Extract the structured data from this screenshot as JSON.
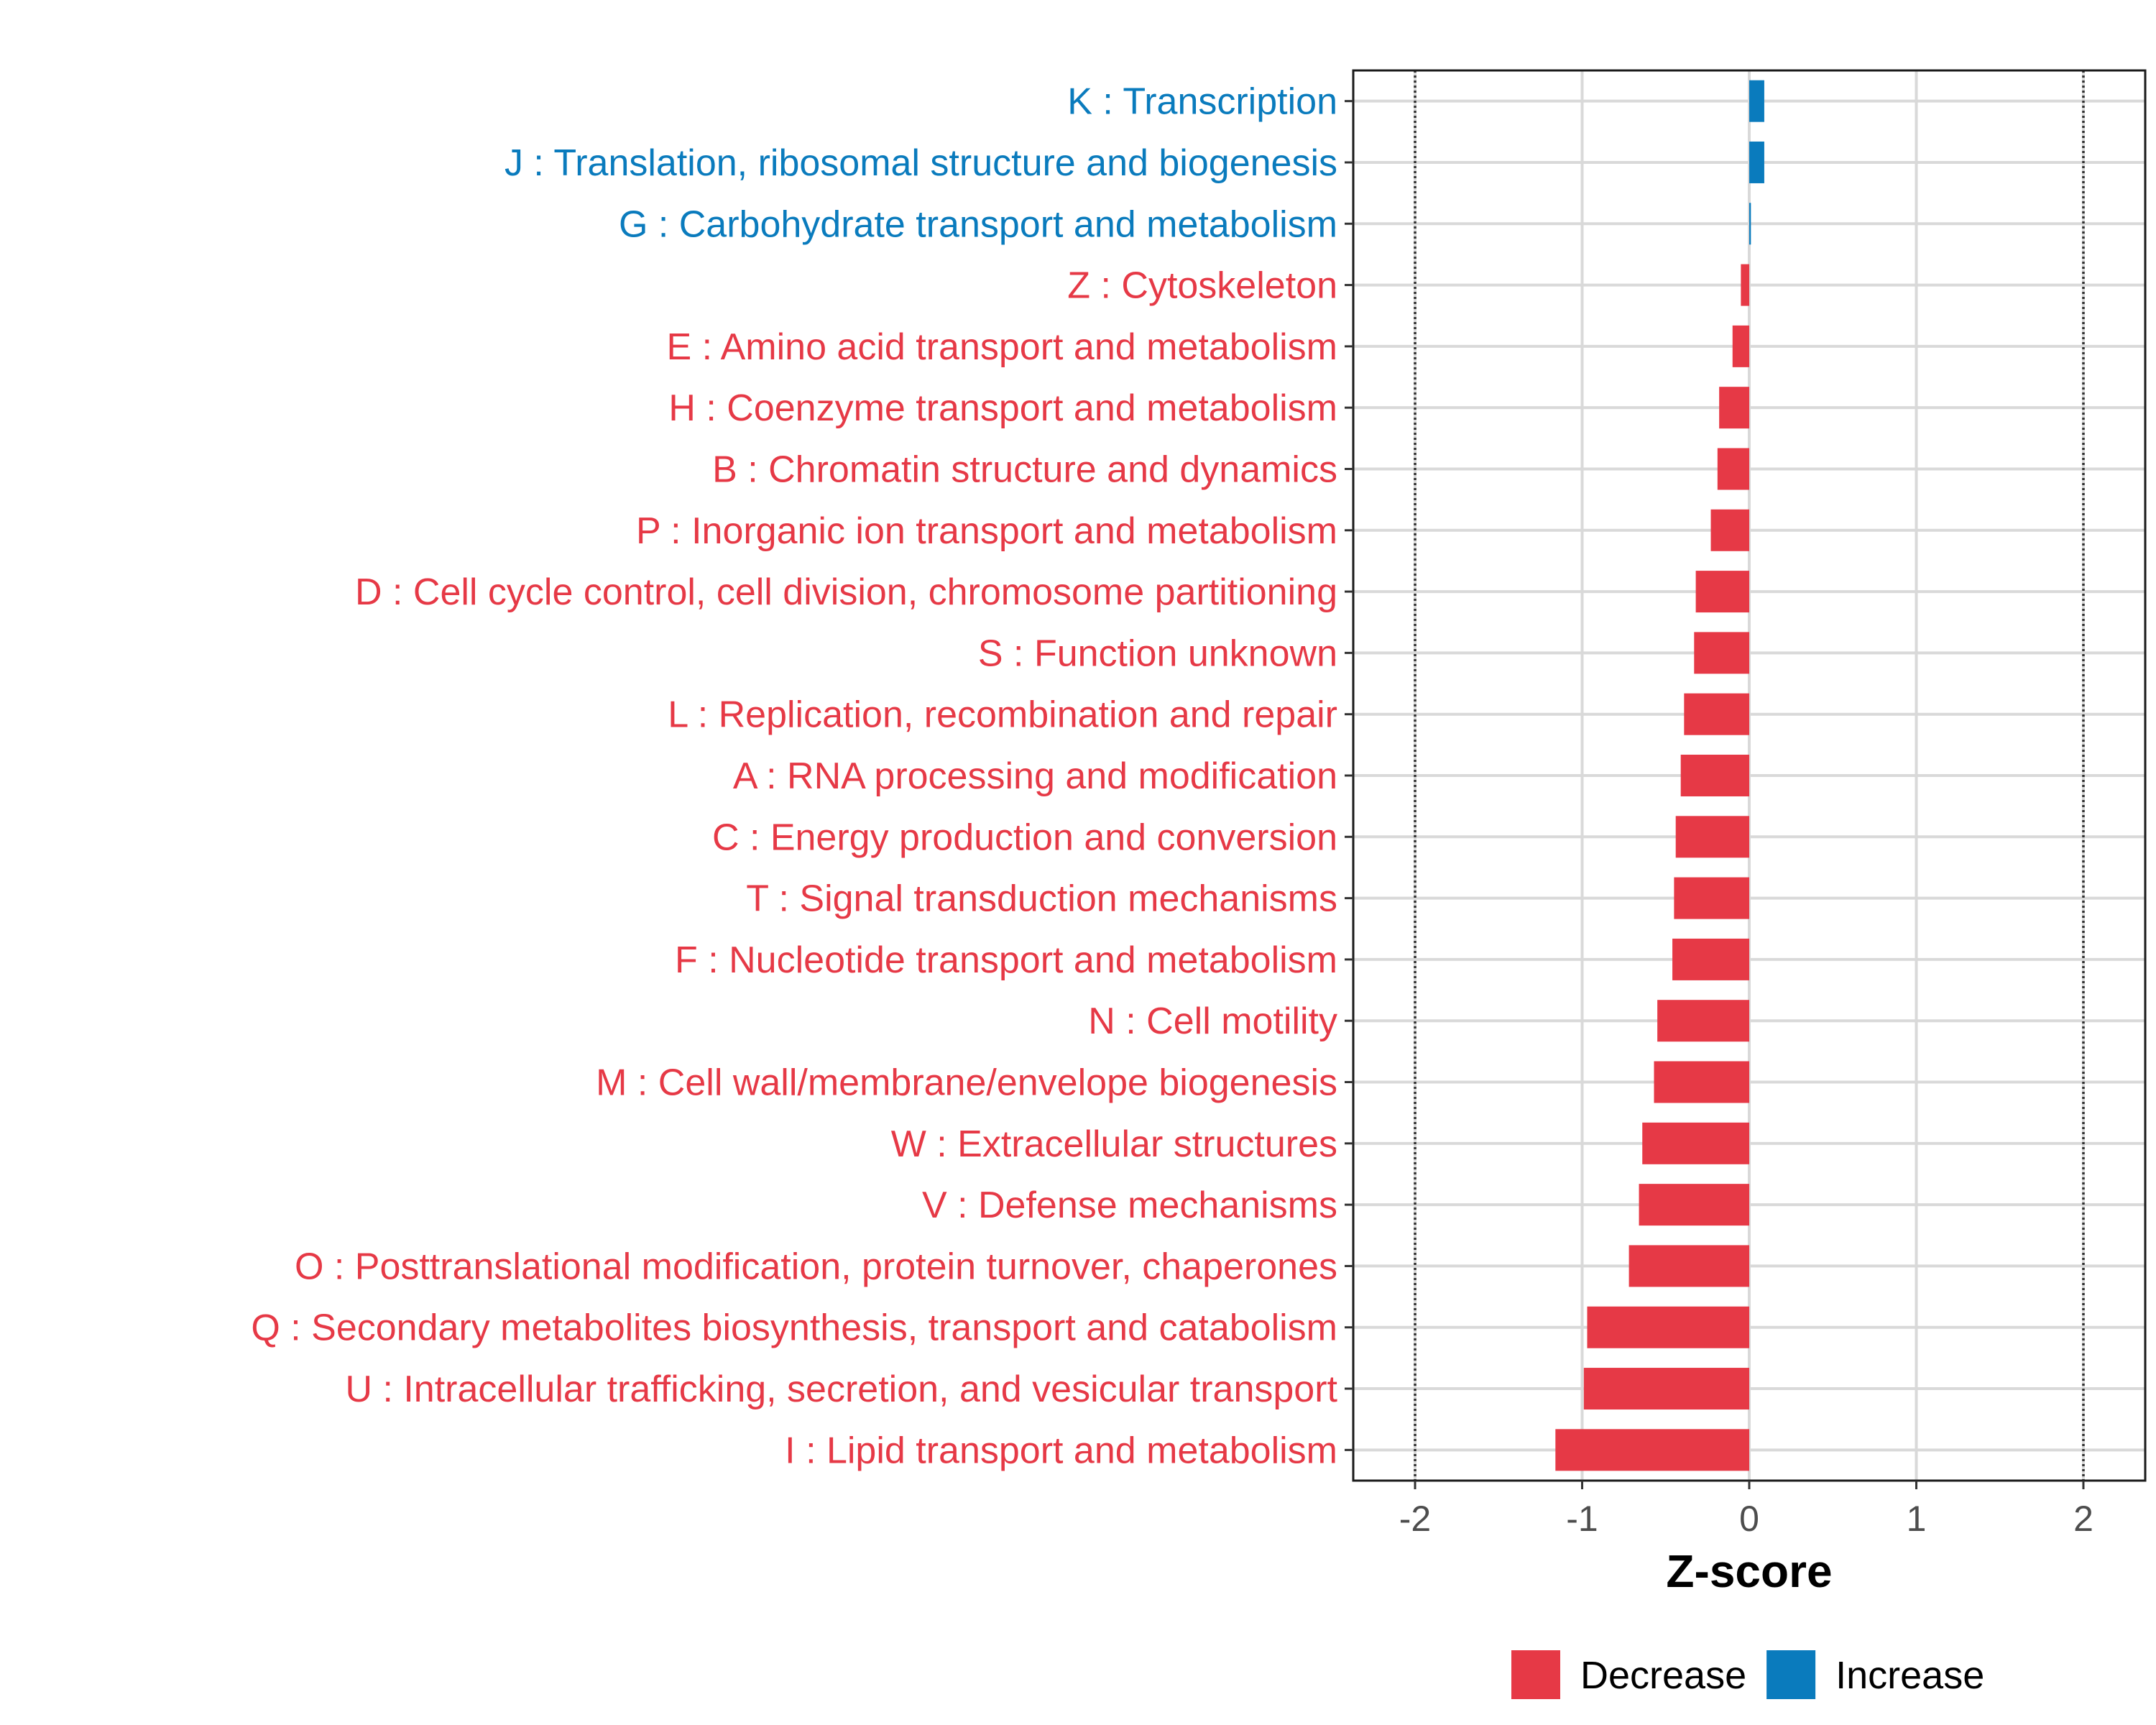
{
  "chart_data": {
    "type": "bar",
    "orientation": "horizontal",
    "xlabel": "Z-score",
    "xlim": [
      -2.37,
      2.37
    ],
    "xticks": [
      -2,
      -1,
      0,
      1,
      2
    ],
    "xtick_labels": [
      "-2",
      "-1",
      "0",
      "1",
      "2"
    ],
    "reference_lines": [
      -2,
      2
    ],
    "grid": true,
    "legend_position": "bottom",
    "colors": {
      "Decrease": "#e63946",
      "Increase": "#0a7bbd"
    },
    "legend": [
      {
        "label": "Decrease",
        "color": "#e63946"
      },
      {
        "label": "Increase",
        "color": "#0a7bbd"
      }
    ],
    "categories": [
      "K : Transcription",
      "J : Translation, ribosomal structure and biogenesis",
      "G : Carbohydrate transport and metabolism",
      "Z : Cytoskeleton",
      "E : Amino acid transport and metabolism",
      "H : Coenzyme transport and metabolism",
      "B : Chromatin structure and dynamics",
      "P : Inorganic ion transport and metabolism",
      "D : Cell cycle control, cell division, chromosome partitioning",
      "S : Function unknown",
      "L : Replication, recombination and repair",
      "A : RNA processing and modification",
      "C : Energy production and conversion",
      "T : Signal transduction mechanisms",
      "F : Nucleotide transport and metabolism",
      "N : Cell motility",
      "M : Cell wall/membrane/envelope biogenesis",
      "W : Extracellular structures",
      "V : Defense mechanisms",
      "O : Posttranslational modification, protein turnover, chaperones",
      "Q : Secondary metabolites biosynthesis, transport and catabolism",
      "U : Intracellular trafficking, secretion, and vesicular transport",
      "I : Lipid transport and metabolism"
    ],
    "values": [
      0.09,
      0.09,
      0.01,
      -0.05,
      -0.1,
      -0.18,
      -0.19,
      -0.23,
      -0.32,
      -0.33,
      -0.39,
      -0.41,
      -0.44,
      -0.45,
      -0.46,
      -0.55,
      -0.57,
      -0.64,
      -0.66,
      -0.72,
      -0.97,
      -0.99,
      -1.16
    ],
    "groups": [
      "Increase",
      "Increase",
      "Increase",
      "Decrease",
      "Decrease",
      "Decrease",
      "Decrease",
      "Decrease",
      "Decrease",
      "Decrease",
      "Decrease",
      "Decrease",
      "Decrease",
      "Decrease",
      "Decrease",
      "Decrease",
      "Decrease",
      "Decrease",
      "Decrease",
      "Decrease",
      "Decrease",
      "Decrease",
      "Decrease"
    ]
  }
}
